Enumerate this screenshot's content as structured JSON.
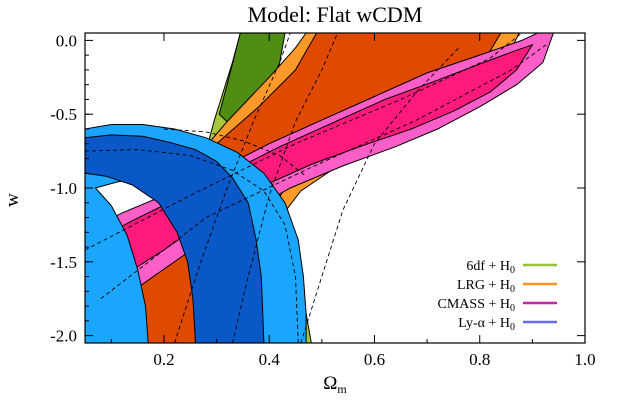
{
  "chart_data": {
    "type": "contour",
    "title": "Model: Flat wCDM",
    "xlabel": "Ω",
    "xlabel_sub": "m",
    "ylabel": "w",
    "xlim": [
      0.05,
      1.0
    ],
    "ylim": [
      -2.05,
      0.05
    ],
    "xticks": [
      {
        "value": 0.2,
        "label": "0.2"
      },
      {
        "value": 0.4,
        "label": "0.4"
      },
      {
        "value": 0.6,
        "label": "0.6"
      },
      {
        "value": 0.8,
        "label": "0.8"
      },
      {
        "value": 1.0,
        "label": "1.0"
      }
    ],
    "yticks": [
      {
        "value": 0.0,
        "label": "0.0"
      },
      {
        "value": -0.5,
        "label": "-0.5"
      },
      {
        "value": -1.0,
        "label": "-1.0"
      },
      {
        "value": -1.5,
        "label": "-1.5"
      },
      {
        "value": -2.0,
        "label": "-2.0"
      }
    ],
    "grid": false,
    "legend_position": "bottom-right",
    "series": [
      {
        "key": "6df",
        "name": "6df + H",
        "name_sub": "0",
        "color": "#98c23a",
        "outer_color": "#a6c63e",
        "inner_color": "#4f8e12",
        "outer": [
          [
            0.19,
            -2.05
          ],
          [
            0.265,
            -0.95
          ],
          [
            0.295,
            -0.55
          ],
          [
            0.33,
            -0.15
          ],
          [
            0.345,
            0.05
          ],
          [
            0.39,
            0.05
          ],
          [
            0.405,
            -0.45
          ],
          [
            0.43,
            -1.05
          ],
          [
            0.45,
            -1.45
          ],
          [
            0.47,
            -1.85
          ],
          [
            0.48,
            -2.05
          ]
        ],
        "inner": [
          [
            0.305,
            -0.5
          ],
          [
            0.32,
            -0.3
          ],
          [
            0.345,
            0.05
          ],
          [
            0.43,
            0.05
          ],
          [
            0.41,
            -0.35
          ],
          [
            0.39,
            -0.5
          ],
          [
            0.36,
            -0.62
          ],
          [
            0.335,
            -0.6
          ]
        ]
      },
      {
        "key": "lrg",
        "name": "LRG + H",
        "name_sub": "0",
        "color": "#ff9020",
        "outer_color": "#ff9a2a",
        "inner_color": "#e04a00",
        "outer": [
          [
            0.15,
            -2.05
          ],
          [
            0.17,
            -1.5
          ],
          [
            0.21,
            -1.05
          ],
          [
            0.26,
            -0.8
          ],
          [
            0.32,
            -0.55
          ],
          [
            0.4,
            -0.25
          ],
          [
            0.45,
            -0.05
          ],
          [
            0.47,
            0.05
          ],
          [
            0.875,
            0.05
          ],
          [
            0.84,
            -0.2
          ],
          [
            0.76,
            -0.42
          ],
          [
            0.66,
            -0.6
          ],
          [
            0.56,
            -0.78
          ],
          [
            0.46,
            -1.02
          ],
          [
            0.4,
            -1.3
          ],
          [
            0.36,
            -1.6
          ],
          [
            0.33,
            -1.85
          ],
          [
            0.31,
            -2.05
          ]
        ],
        "inner": [
          [
            0.05,
            -2.05
          ],
          [
            0.05,
            -1.7
          ],
          [
            0.09,
            -1.45
          ],
          [
            0.15,
            -1.2
          ],
          [
            0.22,
            -0.95
          ],
          [
            0.3,
            -0.7
          ],
          [
            0.38,
            -0.45
          ],
          [
            0.45,
            -0.2
          ],
          [
            0.49,
            0.05
          ],
          [
            0.84,
            0.05
          ],
          [
            0.79,
            -0.25
          ],
          [
            0.72,
            -0.42
          ],
          [
            0.62,
            -0.6
          ],
          [
            0.52,
            -0.77
          ],
          [
            0.43,
            -1.0
          ],
          [
            0.38,
            -1.3
          ],
          [
            0.34,
            -1.6
          ],
          [
            0.31,
            -1.85
          ],
          [
            0.29,
            -2.05
          ]
        ]
      },
      {
        "key": "cmass",
        "name": "CMASS + H",
        "name_sub": "0",
        "color": "#cc22aa",
        "outer_color": "#ff5ec8",
        "inner_color": "#ff1a7c",
        "outer": [
          [
            0.05,
            -1.9
          ],
          [
            0.05,
            -1.3
          ],
          [
            0.12,
            -1.17
          ],
          [
            0.2,
            -1.05
          ],
          [
            0.3,
            -0.88
          ],
          [
            0.4,
            -0.7
          ],
          [
            0.5,
            -0.54
          ],
          [
            0.6,
            -0.38
          ],
          [
            0.7,
            -0.22
          ],
          [
            0.8,
            -0.1
          ],
          [
            0.88,
            0.0
          ],
          [
            0.91,
            0.05
          ],
          [
            0.94,
            0.05
          ],
          [
            0.92,
            -0.15
          ],
          [
            0.87,
            -0.3
          ],
          [
            0.8,
            -0.45
          ],
          [
            0.72,
            -0.6
          ],
          [
            0.64,
            -0.72
          ],
          [
            0.54,
            -0.85
          ],
          [
            0.44,
            -1.0
          ],
          [
            0.34,
            -1.2
          ],
          [
            0.24,
            -1.45
          ],
          [
            0.14,
            -1.7
          ],
          [
            0.08,
            -1.85
          ]
        ],
        "inner": [
          [
            0.05,
            -1.73
          ],
          [
            0.05,
            -1.4
          ],
          [
            0.13,
            -1.24
          ],
          [
            0.22,
            -1.08
          ],
          [
            0.32,
            -0.9
          ],
          [
            0.42,
            -0.72
          ],
          [
            0.52,
            -0.56
          ],
          [
            0.62,
            -0.4
          ],
          [
            0.72,
            -0.27
          ],
          [
            0.8,
            -0.16
          ],
          [
            0.86,
            -0.08
          ],
          [
            0.9,
            -0.03
          ],
          [
            0.87,
            -0.2
          ],
          [
            0.82,
            -0.35
          ],
          [
            0.75,
            -0.48
          ],
          [
            0.67,
            -0.6
          ],
          [
            0.58,
            -0.71
          ],
          [
            0.48,
            -0.84
          ],
          [
            0.38,
            -1.0
          ],
          [
            0.3,
            -1.17
          ],
          [
            0.2,
            -1.42
          ],
          [
            0.12,
            -1.6
          ]
        ]
      },
      {
        "key": "lya",
        "name": "Ly-α + H",
        "name_sub": "0",
        "color": "#6a6aee",
        "outer_color": "#1aa6ff",
        "inner_color": "#0a58c8",
        "outer": [
          [
            0.05,
            -0.6
          ],
          [
            0.1,
            -0.57
          ],
          [
            0.16,
            -0.57
          ],
          [
            0.22,
            -0.6
          ],
          [
            0.28,
            -0.66
          ],
          [
            0.34,
            -0.76
          ],
          [
            0.39,
            -0.9
          ],
          [
            0.43,
            -1.1
          ],
          [
            0.455,
            -1.35
          ],
          [
            0.465,
            -1.6
          ],
          [
            0.47,
            -1.85
          ],
          [
            0.47,
            -2.05
          ],
          [
            0.39,
            -2.05
          ],
          [
            0.38,
            -1.75
          ],
          [
            0.365,
            -1.45
          ],
          [
            0.34,
            -1.2
          ],
          [
            0.3,
            -1.02
          ],
          [
            0.24,
            -0.94
          ],
          [
            0.17,
            -0.92
          ],
          [
            0.11,
            -0.96
          ],
          [
            0.07,
            -1.0
          ],
          [
            0.1,
            -1.12
          ],
          [
            0.13,
            -1.32
          ],
          [
            0.15,
            -1.55
          ],
          [
            0.165,
            -1.8
          ],
          [
            0.17,
            -2.05
          ],
          [
            0.05,
            -2.05
          ]
        ],
        "inner": [
          [
            0.05,
            -0.66
          ],
          [
            0.1,
            -0.64
          ],
          [
            0.16,
            -0.65
          ],
          [
            0.21,
            -0.69
          ],
          [
            0.26,
            -0.74
          ],
          [
            0.3,
            -0.82
          ],
          [
            0.33,
            -0.93
          ],
          [
            0.36,
            -1.1
          ],
          [
            0.375,
            -1.35
          ],
          [
            0.385,
            -1.6
          ],
          [
            0.39,
            -2.05
          ],
          [
            0.26,
            -2.05
          ],
          [
            0.255,
            -1.75
          ],
          [
            0.245,
            -1.5
          ],
          [
            0.225,
            -1.3
          ],
          [
            0.19,
            -1.1
          ],
          [
            0.14,
            -0.98
          ],
          [
            0.09,
            -0.92
          ],
          [
            0.05,
            -0.9
          ]
        ]
      }
    ],
    "dashed_overlay": [
      [
        [
          0.05,
          -1.42
        ],
        [
          0.25,
          -1.05
        ],
        [
          0.45,
          -0.7
        ],
        [
          0.65,
          -0.4
        ],
        [
          0.82,
          -0.12
        ],
        [
          0.88,
          0.05
        ]
      ],
      [
        [
          0.08,
          -1.75
        ],
        [
          0.28,
          -1.2
        ],
        [
          0.48,
          -0.86
        ],
        [
          0.68,
          -0.54
        ],
        [
          0.86,
          -0.2
        ],
        [
          0.93,
          -0.02
        ]
      ],
      [
        [
          0.22,
          -2.05
        ],
        [
          0.27,
          -1.5
        ],
        [
          0.32,
          -1.0
        ],
        [
          0.37,
          -0.55
        ],
        [
          0.42,
          -0.15
        ],
        [
          0.44,
          0.05
        ]
      ],
      [
        [
          0.33,
          -2.05
        ],
        [
          0.36,
          -1.6
        ],
        [
          0.4,
          -1.05
        ],
        [
          0.45,
          -0.55
        ],
        [
          0.5,
          -0.2
        ],
        [
          0.53,
          0.05
        ]
      ],
      [
        [
          0.46,
          -2.05
        ],
        [
          0.5,
          -1.6
        ],
        [
          0.54,
          -1.15
        ],
        [
          0.6,
          -0.7
        ],
        [
          0.68,
          -0.35
        ],
        [
          0.76,
          -0.05
        ]
      ],
      [
        [
          0.05,
          -0.75
        ],
        [
          0.15,
          -0.74
        ],
        [
          0.25,
          -0.78
        ],
        [
          0.33,
          -0.88
        ],
        [
          0.39,
          -1.02
        ],
        [
          0.43,
          -1.25
        ],
        [
          0.45,
          -1.6
        ],
        [
          0.455,
          -2.05
        ]
      ],
      [
        [
          0.2,
          -0.6
        ],
        [
          0.28,
          -0.62
        ],
        [
          0.35,
          -0.68
        ],
        [
          0.42,
          -0.78
        ],
        [
          0.47,
          -0.92
        ]
      ]
    ]
  }
}
